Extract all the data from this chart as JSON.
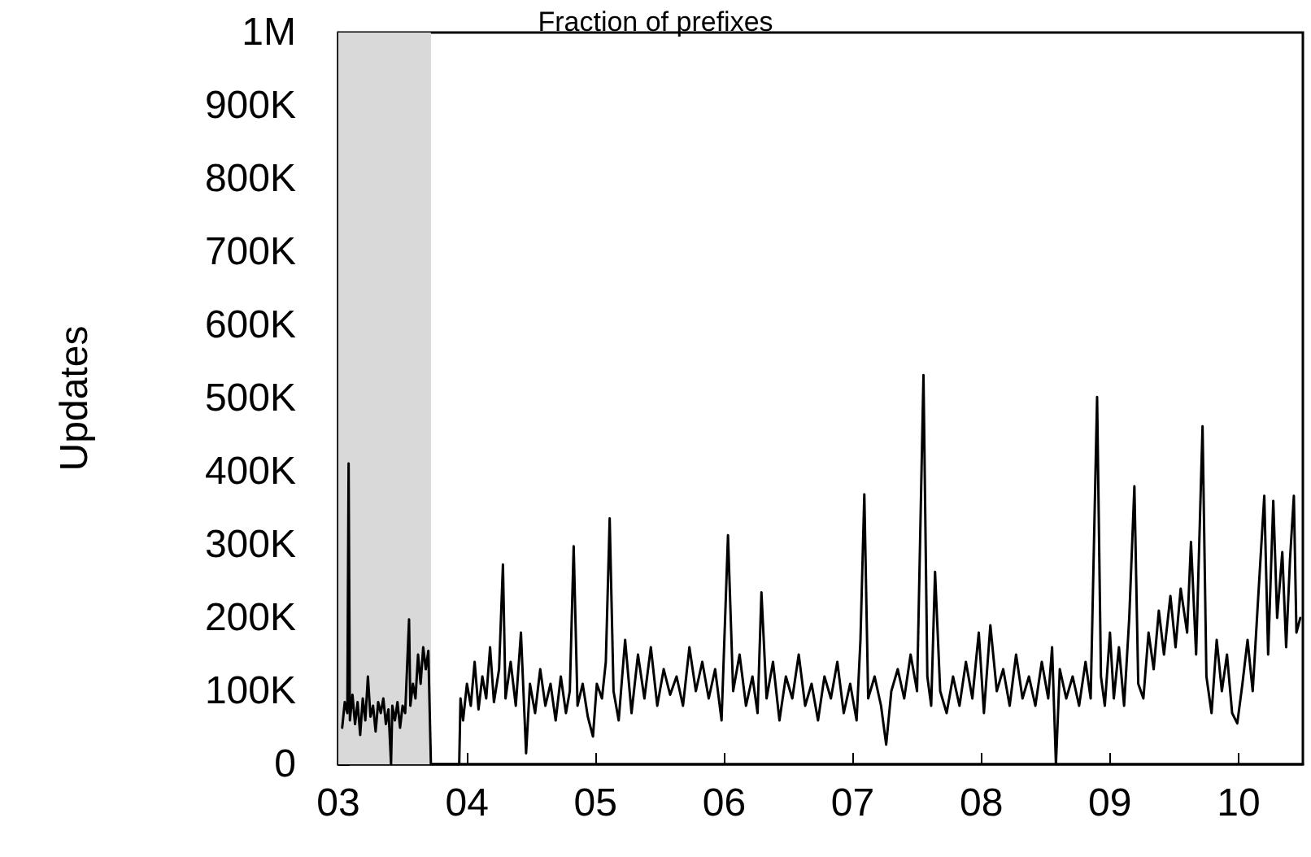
{
  "chart_data": {
    "type": "line",
    "title": "Fraction of prefixes",
    "ylabel": "Updates",
    "color": "#000000",
    "xlim": [
      3,
      10.5
    ],
    "xticks": [
      {
        "value": 3,
        "label": "03"
      },
      {
        "value": 4,
        "label": "04"
      },
      {
        "value": 5,
        "label": "05"
      },
      {
        "value": 6,
        "label": "06"
      },
      {
        "value": 7,
        "label": "07"
      },
      {
        "value": 8,
        "label": "08"
      },
      {
        "value": 9,
        "label": "09"
      },
      {
        "value": 10,
        "label": "10"
      }
    ],
    "ylim": [
      0,
      1000000
    ],
    "yticks": [
      0,
      {
        "value": 100000,
        "label": "100K"
      },
      {
        "value": 200000,
        "label": "200K"
      },
      {
        "value": 300000,
        "label": "300K"
      },
      {
        "value": 400000,
        "label": "400K"
      },
      {
        "value": 500000,
        "label": "500K"
      },
      {
        "value": 600000,
        "label": "600K"
      },
      {
        "value": 700000,
        "label": "700K"
      },
      {
        "value": 800000,
        "label": "800K"
      },
      {
        "value": 900000,
        "label": "900K"
      },
      {
        "value": 1000000,
        "label": "1M"
      }
    ],
    "grid": false,
    "marker": "none",
    "line_style": "solid",
    "bands": [
      {
        "axis": "x",
        "from": 3,
        "to": 3.72,
        "color": "#d9d9d9"
      }
    ],
    "x": [
      3.03,
      3.05,
      3.07,
      3.08,
      3.09,
      3.11,
      3.13,
      3.15,
      3.17,
      3.19,
      3.21,
      3.23,
      3.25,
      3.27,
      3.29,
      3.31,
      3.33,
      3.35,
      3.37,
      3.39,
      3.41,
      3.42,
      3.44,
      3.46,
      3.48,
      3.5,
      3.52,
      3.55,
      3.56,
      3.58,
      3.6,
      3.62,
      3.64,
      3.66,
      3.68,
      3.7,
      3.72,
      3.94,
      3.95,
      3.97,
      4,
      4.03,
      4.06,
      4.09,
      4.12,
      4.15,
      4.18,
      4.21,
      4.25,
      4.28,
      4.3,
      4.34,
      4.38,
      4.42,
      4.46,
      4.49,
      4.53,
      4.57,
      4.61,
      4.65,
      4.69,
      4.73,
      4.77,
      4.8,
      4.83,
      4.86,
      4.9,
      4.94,
      4.98,
      5.01,
      5.05,
      5.08,
      5.11,
      5.14,
      5.18,
      5.23,
      5.28,
      5.33,
      5.38,
      5.43,
      5.48,
      5.53,
      5.58,
      5.63,
      5.68,
      5.73,
      5.78,
      5.83,
      5.88,
      5.93,
      5.98,
      6.03,
      6.07,
      6.12,
      6.17,
      6.22,
      6.26,
      6.29,
      6.33,
      6.38,
      6.43,
      6.48,
      6.53,
      6.58,
      6.63,
      6.68,
      6.73,
      6.78,
      6.83,
      6.88,
      6.93,
      6.98,
      7.03,
      7.06,
      7.09,
      7.12,
      7.17,
      7.22,
      7.26,
      7.3,
      7.35,
      7.4,
      7.45,
      7.5,
      7.55,
      7.58,
      7.61,
      7.64,
      7.68,
      7.73,
      7.78,
      7.83,
      7.88,
      7.93,
      7.98,
      8.02,
      8.07,
      8.12,
      8.17,
      8.22,
      8.27,
      8.32,
      8.37,
      8.42,
      8.47,
      8.52,
      8.55,
      8.58,
      8.61,
      8.66,
      8.71,
      8.76,
      8.81,
      8.85,
      8.9,
      8.93,
      8.96,
      9,
      9.03,
      9.07,
      9.11,
      9.15,
      9.19,
      9.22,
      9.26,
      9.3,
      9.34,
      9.38,
      9.42,
      9.47,
      9.51,
      9.55,
      9.6,
      9.63,
      9.67,
      9.72,
      9.75,
      9.79,
      9.83,
      9.87,
      9.91,
      9.95,
      9.99,
      10.03,
      10.07,
      10.11,
      10.15,
      10.2,
      10.23,
      10.27,
      10.3,
      10.34,
      10.37,
      10.4,
      10.43,
      10.45,
      10.48
    ],
    "values": [
      50000,
      85000,
      70000,
      411000,
      60000,
      95000,
      55000,
      85000,
      40000,
      90000,
      60000,
      120000,
      65000,
      80000,
      45000,
      85000,
      70000,
      90000,
      55000,
      75000,
      0,
      80000,
      60000,
      85000,
      50000,
      80000,
      70000,
      198000,
      80000,
      110000,
      90000,
      150000,
      110000,
      160000,
      130000,
      155000,
      0,
      0,
      90000,
      60000,
      110000,
      80000,
      140000,
      75000,
      120000,
      90000,
      160000,
      85000,
      130000,
      273000,
      90000,
      140000,
      80000,
      180000,
      15000,
      110000,
      70000,
      130000,
      80000,
      110000,
      60000,
      120000,
      70000,
      100000,
      298000,
      80000,
      110000,
      65000,
      38000,
      110000,
      90000,
      140000,
      336000,
      100000,
      60000,
      170000,
      70000,
      150000,
      90000,
      160000,
      80000,
      130000,
      95000,
      120000,
      80000,
      160000,
      100000,
      140000,
      90000,
      130000,
      60000,
      313000,
      100000,
      150000,
      80000,
      120000,
      70000,
      235000,
      90000,
      140000,
      60000,
      120000,
      90000,
      150000,
      80000,
      110000,
      60000,
      120000,
      90000,
      140000,
      70000,
      110000,
      60000,
      170000,
      369000,
      90000,
      120000,
      80000,
      27000,
      100000,
      130000,
      90000,
      150000,
      100000,
      532000,
      120000,
      80000,
      263000,
      100000,
      70000,
      120000,
      80000,
      140000,
      90000,
      180000,
      70000,
      190000,
      100000,
      130000,
      80000,
      150000,
      90000,
      120000,
      80000,
      140000,
      90000,
      160000,
      0,
      130000,
      90000,
      120000,
      80000,
      140000,
      90000,
      502000,
      120000,
      80000,
      180000,
      90000,
      160000,
      80000,
      200000,
      380000,
      110000,
      90000,
      180000,
      130000,
      210000,
      150000,
      230000,
      160000,
      240000,
      180000,
      304000,
      150000,
      462000,
      120000,
      70000,
      170000,
      100000,
      150000,
      70000,
      56000,
      110000,
      170000,
      100000,
      220000,
      367000,
      150000,
      360000,
      200000,
      290000,
      160000,
      280000,
      367000,
      180000,
      200000
    ]
  }
}
